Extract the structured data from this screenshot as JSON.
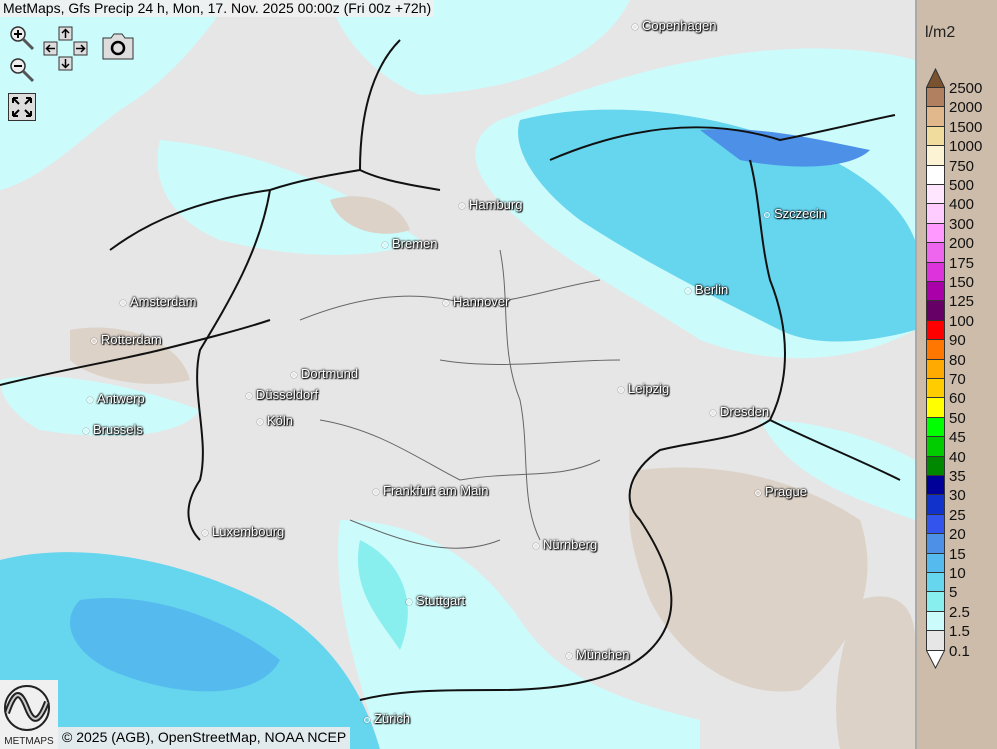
{
  "title": "MetMaps, Gfs Precip 24 h, Mon, 17. Nov. 2025 00:00z (Fri 00z +72h)",
  "controls": {
    "zoom_in": "zoom-in-icon",
    "zoom_out": "zoom-out-icon",
    "pan": "pan-arrows-icon",
    "snapshot": "camera-icon",
    "fullscreen": "fullscreen-icon"
  },
  "cities": [
    {
      "name": "Copenhagen"
    },
    {
      "name": "Hamburg"
    },
    {
      "name": "Bremen"
    },
    {
      "name": "Szczecin"
    },
    {
      "name": "Amsterdam"
    },
    {
      "name": "Hannover"
    },
    {
      "name": "Berlin"
    },
    {
      "name": "Rotterdam"
    },
    {
      "name": "Dortmund"
    },
    {
      "name": "Leipzig"
    },
    {
      "name": "Antwerp"
    },
    {
      "name": "Düsseldorf"
    },
    {
      "name": "Dresden"
    },
    {
      "name": "Köln"
    },
    {
      "name": "Brussels"
    },
    {
      "name": "Prague"
    },
    {
      "name": "Frankfurt am Main"
    },
    {
      "name": "Luxembourg"
    },
    {
      "name": "Nürnberg"
    },
    {
      "name": "Stuttgart"
    },
    {
      "name": "München"
    },
    {
      "name": "Zürich"
    }
  ],
  "copyright": "© 2025 (AGB), OpenStreetMap, NOAA NCEP",
  "logo_text": "METMAPS",
  "legend": {
    "unit": "l/m2",
    "top_color": "#7a5230",
    "bottom_color": "#ffffff",
    "labels": [
      "2500",
      "2000",
      "1500",
      "1000",
      "750",
      "500",
      "400",
      "300",
      "200",
      "175",
      "150",
      "125",
      "100",
      "90",
      "80",
      "70",
      "60",
      "50",
      "45",
      "40",
      "35",
      "30",
      "25",
      "20",
      "15",
      "10",
      "5",
      "2.5",
      "1.5",
      "0.1"
    ],
    "colors": [
      "#b08060",
      "#e0b88c",
      "#f0dc9c",
      "#fbf3d4",
      "#ffffff",
      "#ffe6ff",
      "#ffccff",
      "#ff99ff",
      "#ee66ee",
      "#dd33dd",
      "#aa00aa",
      "#660066",
      "#ff0000",
      "#ff7700",
      "#ffaa00",
      "#ffcc00",
      "#ffff00",
      "#00ff00",
      "#00cc00",
      "#008800",
      "#000099",
      "#1133cc",
      "#3355ee",
      "#4d90e8",
      "#55bbee",
      "#66d5ee",
      "#88eeee",
      "#ccfbfb",
      "#e6e6e6"
    ]
  }
}
